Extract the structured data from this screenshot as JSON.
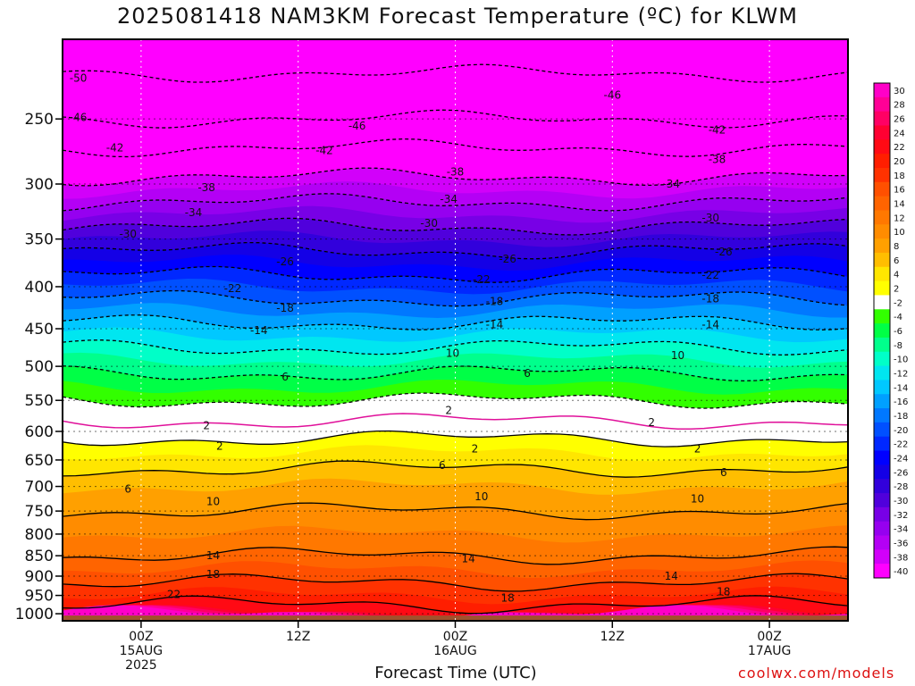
{
  "chart_data": {
    "type": "heatmap",
    "title": "2025081418 NAM3KM Forecast Temperature (ºC) for KLWM",
    "xlabel": "Forecast Time (UTC)",
    "ylabel": "",
    "y_scale": "log-pressure",
    "ylim": [
      1000,
      200
    ],
    "y_ticks": [
      250,
      300,
      350,
      400,
      450,
      500,
      550,
      600,
      650,
      700,
      750,
      800,
      850,
      900,
      950,
      1000
    ],
    "x_ticks": [
      {
        "line1": "00Z",
        "line2": "15AUG",
        "line3": "2025",
        "hours": 6
      },
      {
        "line1": "12Z",
        "line2": "",
        "line3": "",
        "hours": 18
      },
      {
        "line1": "00Z",
        "line2": "16AUG",
        "line3": "",
        "hours": 30
      },
      {
        "line1": "12Z",
        "line2": "",
        "line3": "",
        "hours": 42
      },
      {
        "line1": "00Z",
        "line2": "17AUG",
        "line3": "",
        "hours": 54
      }
    ],
    "xlim_hours": [
      0,
      60
    ],
    "grid": true,
    "colorbar": {
      "labels": [
        "30",
        "28",
        "26",
        "24",
        "22",
        "20",
        "18",
        "16",
        "14",
        "12",
        "10",
        "8",
        "6",
        "4",
        "2",
        "-2",
        "-4",
        "-6",
        "-8",
        "-10",
        "-12",
        "-14",
        "-16",
        "-18",
        "-20",
        "-22",
        "-24",
        "-26",
        "-28",
        "-30",
        "-32",
        "-34",
        "-36",
        "-38",
        "-40"
      ],
      "colors": [
        "#ff00c8",
        "#ff0096",
        "#ff0064",
        "#ff0032",
        "#ff0a14",
        "#ff1e00",
        "#ff3200",
        "#ff5000",
        "#ff6400",
        "#ff7800",
        "#ff8c00",
        "#ffa000",
        "#ffbe00",
        "#ffe600",
        "#ffff00",
        "#ffffff",
        "#32ff00",
        "#00ff46",
        "#00ff8c",
        "#00ffc8",
        "#00e6f0",
        "#00c8ff",
        "#00a0ff",
        "#0078ff",
        "#0050ff",
        "#0028ff",
        "#0000ff",
        "#1400e6",
        "#3200dc",
        "#5000dc",
        "#7800e6",
        "#9600f0",
        "#b400f5",
        "#d200fa",
        "#ff00ff"
      ]
    },
    "isotherm_profile": [
      {
        "pressure": 1000,
        "temp": 24
      },
      {
        "pressure": 950,
        "temp": 20
      },
      {
        "pressure": 900,
        "temp": 17
      },
      {
        "pressure": 850,
        "temp": 14
      },
      {
        "pressure": 800,
        "temp": 12
      },
      {
        "pressure": 750,
        "temp": 10
      },
      {
        "pressure": 700,
        "temp": 8
      },
      {
        "pressure": 650,
        "temp": 5
      },
      {
        "pressure": 600,
        "temp": 1
      },
      {
        "pressure": 550,
        "temp": -2
      },
      {
        "pressure": 500,
        "temp": -7
      },
      {
        "pressure": 450,
        "temp": -13
      },
      {
        "pressure": 400,
        "temp": -20
      },
      {
        "pressure": 350,
        "temp": -28
      },
      {
        "pressure": 300,
        "temp": -37
      },
      {
        "pressure": 250,
        "temp": -46
      },
      {
        "pressure": 200,
        "temp": -53
      }
    ],
    "contour_labels": [
      {
        "text": "-50",
        "hours": 1.2,
        "pressure": 223
      },
      {
        "text": "-46",
        "hours": 1.2,
        "pressure": 249
      },
      {
        "text": "-46",
        "hours": 22.5,
        "pressure": 255
      },
      {
        "text": "-46",
        "hours": 42.0,
        "pressure": 234
      },
      {
        "text": "-42",
        "hours": 4.0,
        "pressure": 271
      },
      {
        "text": "-42",
        "hours": 20.0,
        "pressure": 273
      },
      {
        "text": "-42",
        "hours": 50.0,
        "pressure": 258
      },
      {
        "text": "-38",
        "hours": 11.0,
        "pressure": 303
      },
      {
        "text": "-38",
        "hours": 30.0,
        "pressure": 290
      },
      {
        "text": "-38",
        "hours": 50.0,
        "pressure": 280
      },
      {
        "text": "-34",
        "hours": 10.0,
        "pressure": 325
      },
      {
        "text": "-34",
        "hours": 29.5,
        "pressure": 313
      },
      {
        "text": "-34",
        "hours": 46.5,
        "pressure": 300
      },
      {
        "text": "-30",
        "hours": 5.0,
        "pressure": 345
      },
      {
        "text": "-30",
        "hours": 28.0,
        "pressure": 335
      },
      {
        "text": "-30",
        "hours": 49.5,
        "pressure": 330
      },
      {
        "text": "-26",
        "hours": 17.0,
        "pressure": 373
      },
      {
        "text": "-26",
        "hours": 34.0,
        "pressure": 370
      },
      {
        "text": "-26",
        "hours": 50.5,
        "pressure": 363
      },
      {
        "text": "-22",
        "hours": 13.0,
        "pressure": 402
      },
      {
        "text": "-22",
        "hours": 32.0,
        "pressure": 392
      },
      {
        "text": "-22",
        "hours": 49.5,
        "pressure": 387
      },
      {
        "text": "-18",
        "hours": 17.0,
        "pressure": 425
      },
      {
        "text": "-18",
        "hours": 33.0,
        "pressure": 417
      },
      {
        "text": "-18",
        "hours": 49.5,
        "pressure": 414
      },
      {
        "text": "-14",
        "hours": 15.0,
        "pressure": 452
      },
      {
        "text": "-14",
        "hours": 33.0,
        "pressure": 445
      },
      {
        "text": "-14",
        "hours": 49.5,
        "pressure": 445
      },
      {
        "text": "10",
        "hours": 29.8,
        "pressure": 482
      },
      {
        "text": "10",
        "hours": 47.0,
        "pressure": 485
      },
      {
        "text": "6",
        "hours": 17.0,
        "pressure": 515
      },
      {
        "text": "6",
        "hours": 35.5,
        "pressure": 510
      },
      {
        "text": "2",
        "hours": 29.5,
        "pressure": 566
      },
      {
        "text": "2",
        "hours": 11.0,
        "pressure": 590
      },
      {
        "text": "2",
        "hours": 45.0,
        "pressure": 585
      },
      {
        "text": "2",
        "hours": 12.0,
        "pressure": 625
      },
      {
        "text": "2",
        "hours": 31.5,
        "pressure": 630
      },
      {
        "text": "2",
        "hours": 48.5,
        "pressure": 630
      },
      {
        "text": "6",
        "hours": 29.0,
        "pressure": 660
      },
      {
        "text": "6",
        "hours": 50.5,
        "pressure": 673
      },
      {
        "text": "6",
        "hours": 5.0,
        "pressure": 705
      },
      {
        "text": "10",
        "hours": 11.5,
        "pressure": 730
      },
      {
        "text": "10",
        "hours": 32.0,
        "pressure": 720
      },
      {
        "text": "10",
        "hours": 48.5,
        "pressure": 725
      },
      {
        "text": "14",
        "hours": 11.5,
        "pressure": 850
      },
      {
        "text": "14",
        "hours": 31.0,
        "pressure": 857
      },
      {
        "text": "14",
        "hours": 46.5,
        "pressure": 900
      },
      {
        "text": "18",
        "hours": 11.5,
        "pressure": 895
      },
      {
        "text": "18",
        "hours": 34.0,
        "pressure": 957
      },
      {
        "text": "18",
        "hours": 50.5,
        "pressure": 940
      },
      {
        "text": "22",
        "hours": 8.5,
        "pressure": 947
      }
    ]
  },
  "credit": "coolwx.com/models"
}
